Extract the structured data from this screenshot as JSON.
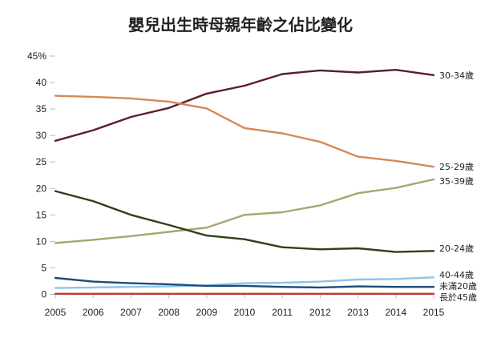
{
  "chart_data": {
    "type": "line",
    "title": "嬰兒出生時母親年齡之佔比變化",
    "x": [
      "2005",
      "2006",
      "2007",
      "2008",
      "2009",
      "2010",
      "2011",
      "2012",
      "2013",
      "2014",
      "2015"
    ],
    "y_ticks": [
      "0",
      "5",
      "10",
      "15",
      "20",
      "25",
      "30",
      "35",
      "40",
      "45%"
    ],
    "ylim": [
      0,
      45
    ],
    "grid": false,
    "series": [
      {
        "name": "30-34歲",
        "color": "#5a1f24",
        "values": [
          29.0,
          31.0,
          33.5,
          35.2,
          37.9,
          39.4,
          41.6,
          42.3,
          41.9,
          42.4,
          41.4
        ]
      },
      {
        "name": "25-29歲",
        "color": "#d98758",
        "values": [
          37.5,
          37.3,
          37.0,
          36.4,
          35.1,
          31.4,
          30.4,
          28.8,
          26.0,
          25.2,
          24.1
        ]
      },
      {
        "name": "35-39歲",
        "color": "#aaa56f",
        "values": [
          9.7,
          10.3,
          11.0,
          11.8,
          12.6,
          15.0,
          15.5,
          16.8,
          19.1,
          20.1,
          21.7
        ]
      },
      {
        "name": "20-24歲",
        "color": "#2d4019",
        "values": [
          19.5,
          17.6,
          15.0,
          13.1,
          11.1,
          10.4,
          8.9,
          8.5,
          8.7,
          8.0,
          8.2
        ]
      },
      {
        "name": "40-44歲",
        "color": "#8ec4e6",
        "values": [
          1.2,
          1.3,
          1.4,
          1.5,
          1.7,
          2.1,
          2.2,
          2.4,
          2.8,
          2.9,
          3.2
        ]
      },
      {
        "name": "未滿20歲",
        "color": "#1f4a7a",
        "values": [
          3.1,
          2.4,
          2.1,
          1.9,
          1.6,
          1.6,
          1.4,
          1.3,
          1.5,
          1.4,
          1.4
        ]
      },
      {
        "name": "長於45歲",
        "color": "#c0392b",
        "values": [
          0.1,
          0.1,
          0.1,
          0.1,
          0.1,
          0.1,
          0.1,
          0.1,
          0.1,
          0.1,
          0.1
        ]
      }
    ]
  }
}
